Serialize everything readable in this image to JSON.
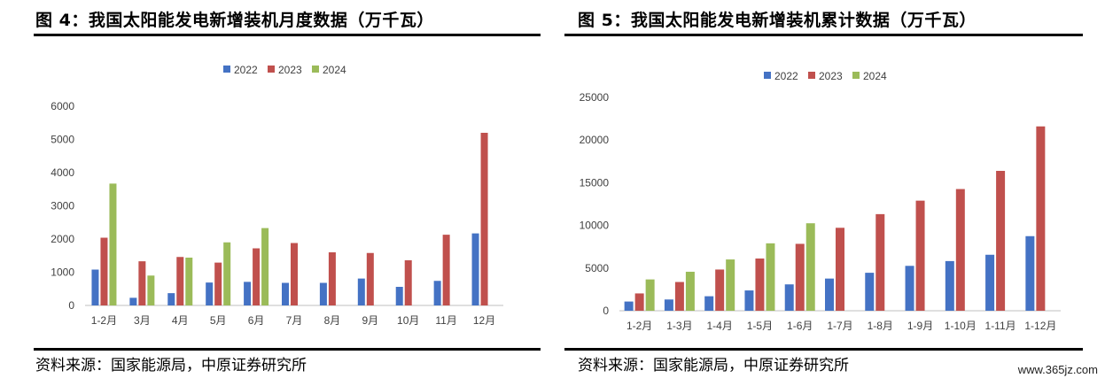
{
  "colors": {
    "2022": "#4472c4",
    "2023": "#c0504d",
    "2024": "#9bbb59"
  },
  "left": {
    "title": "图 4：我国太阳能发电新增装机月度数据（万千瓦）",
    "source": "资料来源：国家能源局，中原证券研究所"
  },
  "right": {
    "title": "图 5：我国太阳能发电新增装机累计数据（万千瓦）",
    "source": "资料来源：国家能源局，中原证券研究所"
  },
  "watermark": "www.365jz.com",
  "chart_data": [
    {
      "type": "bar",
      "title": "图 4：我国太阳能发电新增装机月度数据（万千瓦）",
      "categories": [
        "1-2月",
        "3月",
        "4月",
        "5月",
        "6月",
        "7月",
        "8月",
        "9月",
        "10月",
        "11月",
        "12月"
      ],
      "series": [
        {
          "name": "2022",
          "values": [
            1080,
            230,
            370,
            690,
            710,
            680,
            680,
            810,
            560,
            740,
            2170
          ]
        },
        {
          "name": "2023",
          "values": [
            2040,
            1330,
            1460,
            1290,
            1720,
            1880,
            1600,
            1580,
            1360,
            2130,
            5200
          ]
        },
        {
          "name": "2024",
          "values": [
            3670,
            900,
            1440,
            1900,
            2330,
            null,
            null,
            null,
            null,
            null,
            null
          ]
        }
      ],
      "ylim": [
        0,
        6000
      ],
      "yticks": [
        0,
        1000,
        2000,
        3000,
        4000,
        5000,
        6000
      ],
      "legend": "top-center",
      "grid": false
    },
    {
      "type": "bar",
      "title": "图 5：我国太阳能发电新增装机累计数据（万千瓦）",
      "categories": [
        "1-2月",
        "1-3月",
        "1-4月",
        "1-5月",
        "1-6月",
        "1-7月",
        "1-8月",
        "1-9月",
        "1-10月",
        "1-11月",
        "1-12月"
      ],
      "series": [
        {
          "name": "2022",
          "values": [
            1080,
            1320,
            1700,
            2380,
            3090,
            3770,
            4450,
            5260,
            5820,
            6560,
            8740
          ]
        },
        {
          "name": "2023",
          "values": [
            2030,
            3370,
            4830,
            6120,
            7840,
            9720,
            11320,
            12900,
            14260,
            16390,
            21600
          ]
        },
        {
          "name": "2024",
          "values": [
            3670,
            4570,
            6010,
            7900,
            10250,
            null,
            null,
            null,
            null,
            null,
            null
          ]
        }
      ],
      "ylim": [
        0,
        25000
      ],
      "yticks": [
        0,
        5000,
        10000,
        15000,
        20000,
        25000
      ],
      "legend": "top-center",
      "grid": false
    }
  ]
}
